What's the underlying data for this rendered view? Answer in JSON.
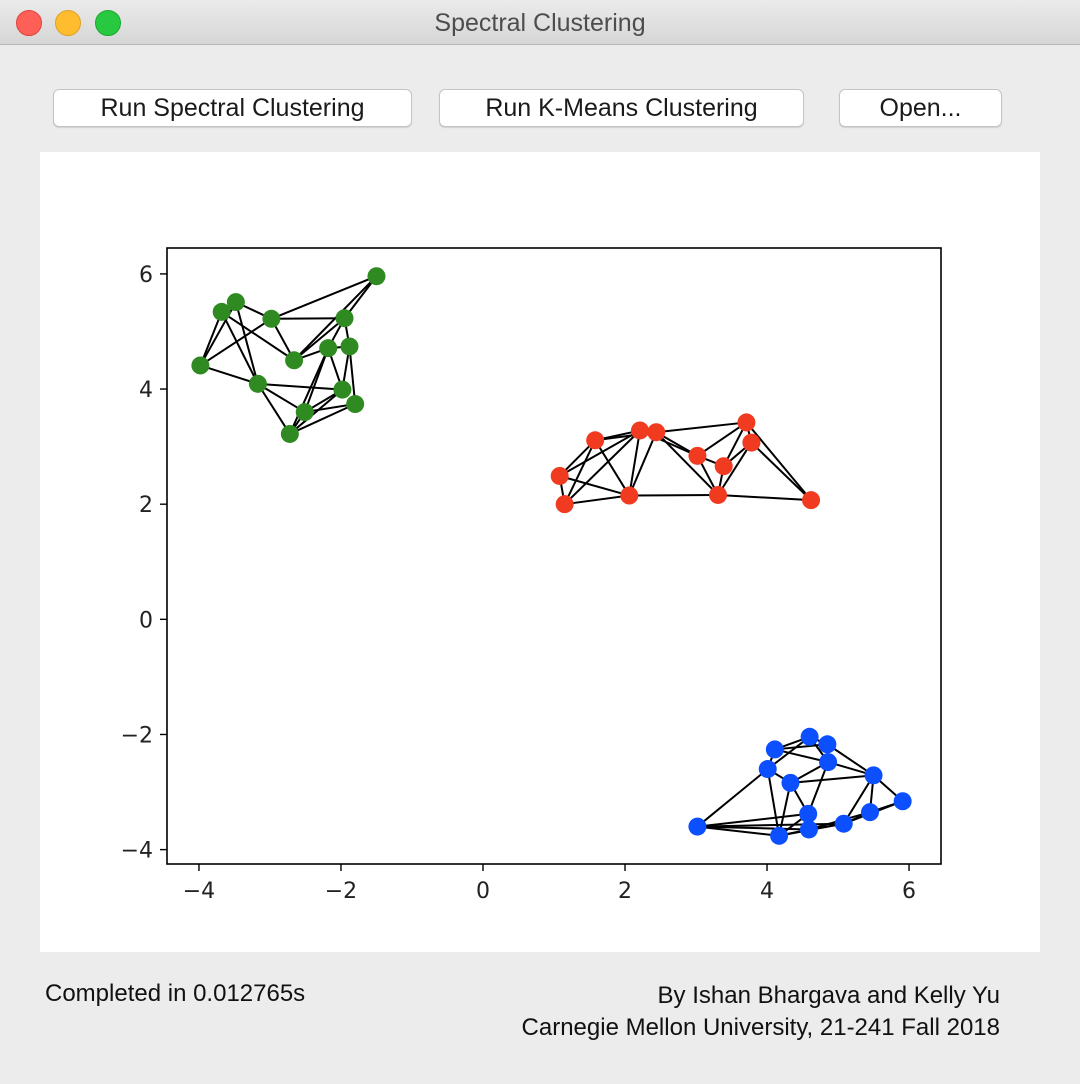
{
  "window": {
    "title": "Spectral Clustering"
  },
  "toolbar": {
    "spectral_label": "Run Spectral Clustering",
    "kmeans_label": "Run K-Means Clustering",
    "open_label": "Open..."
  },
  "status": {
    "text": "Completed in 0.012765s"
  },
  "credits": {
    "line1": "By Ishan Bhargava and Kelly Yu",
    "line2": "Carnegie Mellon University, 21-241 Fall 2018"
  },
  "chart_data": {
    "type": "scatter",
    "xlim": [
      -4.45,
      6.45
    ],
    "ylim": [
      -4.25,
      6.45
    ],
    "xticks": [
      -4,
      -2,
      0,
      2,
      4,
      6
    ],
    "yticks": [
      -4,
      -2,
      0,
      2,
      4,
      6
    ],
    "grid": false,
    "edge_color": "#000000",
    "series": [
      {
        "color": "#2f8a21",
        "points": [
          [
            -3.98,
            4.41
          ],
          [
            -3.68,
            5.34
          ],
          [
            -3.48,
            5.51
          ],
          [
            -2.98,
            5.22
          ],
          [
            -3.17,
            4.09
          ],
          [
            -2.66,
            4.5
          ],
          [
            -2.18,
            4.71
          ],
          [
            -1.95,
            5.23
          ],
          [
            -1.88,
            4.74
          ],
          [
            -1.5,
            5.96
          ],
          [
            -1.98,
            3.99
          ],
          [
            -1.8,
            3.74
          ],
          [
            -2.51,
            3.6
          ],
          [
            -2.72,
            3.22
          ]
        ],
        "edges": [
          [
            0,
            1
          ],
          [
            0,
            2
          ],
          [
            0,
            3
          ],
          [
            0,
            4
          ],
          [
            1,
            2
          ],
          [
            1,
            4
          ],
          [
            1,
            5
          ],
          [
            2,
            3
          ],
          [
            2,
            4
          ],
          [
            3,
            5
          ],
          [
            3,
            7
          ],
          [
            3,
            9
          ],
          [
            5,
            6
          ],
          [
            5,
            7
          ],
          [
            5,
            9
          ],
          [
            6,
            7
          ],
          [
            6,
            8
          ],
          [
            6,
            10
          ],
          [
            6,
            12
          ],
          [
            7,
            8
          ],
          [
            7,
            9
          ],
          [
            8,
            10
          ],
          [
            8,
            11
          ],
          [
            4,
            10
          ],
          [
            4,
            12
          ],
          [
            10,
            12
          ],
          [
            10,
            13
          ],
          [
            11,
            12
          ],
          [
            11,
            13
          ],
          [
            12,
            13
          ],
          [
            6,
            13
          ],
          [
            4,
            13
          ]
        ]
      },
      {
        "color": "#f03b20",
        "points": [
          [
            1.08,
            2.49
          ],
          [
            1.15,
            2.0
          ],
          [
            1.58,
            3.11
          ],
          [
            2.06,
            2.15
          ],
          [
            2.21,
            3.28
          ],
          [
            2.44,
            3.25
          ],
          [
            3.02,
            2.84
          ],
          [
            3.31,
            2.16
          ],
          [
            3.39,
            2.66
          ],
          [
            3.71,
            3.42
          ],
          [
            3.78,
            3.07
          ],
          [
            4.62,
            2.07
          ]
        ],
        "edges": [
          [
            0,
            1
          ],
          [
            0,
            2
          ],
          [
            0,
            3
          ],
          [
            0,
            4
          ],
          [
            1,
            2
          ],
          [
            1,
            3
          ],
          [
            1,
            4
          ],
          [
            2,
            4
          ],
          [
            2,
            5
          ],
          [
            3,
            4
          ],
          [
            3,
            5
          ],
          [
            3,
            7
          ],
          [
            4,
            5
          ],
          [
            4,
            6
          ],
          [
            5,
            6
          ],
          [
            5,
            7
          ],
          [
            6,
            7
          ],
          [
            6,
            8
          ],
          [
            6,
            9
          ],
          [
            7,
            8
          ],
          [
            7,
            10
          ],
          [
            7,
            11
          ],
          [
            8,
            9
          ],
          [
            8,
            10
          ],
          [
            9,
            10
          ],
          [
            9,
            11
          ],
          [
            10,
            11
          ],
          [
            5,
            9
          ],
          [
            2,
            3
          ]
        ]
      },
      {
        "color": "#0b4fff",
        "points": [
          [
            3.02,
            -3.6
          ],
          [
            4.01,
            -2.6
          ],
          [
            4.11,
            -2.26
          ],
          [
            4.17,
            -3.76
          ],
          [
            4.33,
            -2.84
          ],
          [
            4.58,
            -3.38
          ],
          [
            4.59,
            -3.65
          ],
          [
            4.6,
            -2.04
          ],
          [
            4.85,
            -2.17
          ],
          [
            4.86,
            -2.48
          ],
          [
            5.08,
            -3.55
          ],
          [
            5.45,
            -3.35
          ],
          [
            5.5,
            -2.71
          ],
          [
            5.91,
            -3.16
          ]
        ],
        "edges": [
          [
            0,
            1
          ],
          [
            0,
            3
          ],
          [
            0,
            5
          ],
          [
            0,
            6
          ],
          [
            0,
            10
          ],
          [
            1,
            2
          ],
          [
            1,
            3
          ],
          [
            1,
            4
          ],
          [
            1,
            7
          ],
          [
            2,
            7
          ],
          [
            2,
            8
          ],
          [
            2,
            9
          ],
          [
            3,
            4
          ],
          [
            3,
            5
          ],
          [
            3,
            6
          ],
          [
            4,
            5
          ],
          [
            4,
            9
          ],
          [
            4,
            12
          ],
          [
            5,
            6
          ],
          [
            5,
            9
          ],
          [
            6,
            10
          ],
          [
            6,
            11
          ],
          [
            7,
            8
          ],
          [
            7,
            9
          ],
          [
            8,
            9
          ],
          [
            8,
            12
          ],
          [
            9,
            12
          ],
          [
            10,
            11
          ],
          [
            10,
            12
          ],
          [
            11,
            12
          ],
          [
            11,
            13
          ],
          [
            12,
            13
          ],
          [
            10,
            13
          ],
          [
            3,
            10
          ]
        ]
      }
    ]
  }
}
